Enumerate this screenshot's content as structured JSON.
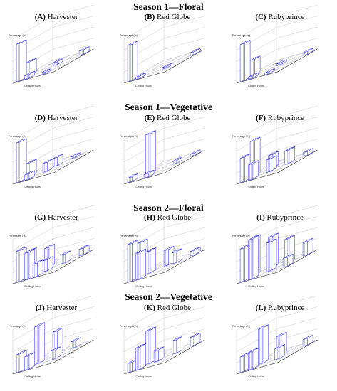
{
  "colors": {
    "bar": "#4a4af0",
    "grid": "#c8c8d8",
    "axis": "#333333"
  },
  "seasons": [
    {
      "title": "Season 1—Floral"
    },
    {
      "title": "Season 1—Vegetative"
    },
    {
      "title": "Season 2—Floral"
    },
    {
      "title": "Season 2—Vegetative"
    }
  ],
  "chart_data": [
    {
      "type": "bar",
      "title_letter": "A",
      "title_cultivar": "Harvester",
      "ylabel": "Percentage (%)",
      "xlabel": "Chilling Hours",
      "bars": [
        {
          "col": 0,
          "row": 0,
          "value": 85
        },
        {
          "col": 0,
          "row": 1,
          "value": 30
        },
        {
          "col": 1,
          "row": 0,
          "value": 8
        },
        {
          "col": 2,
          "row": 2,
          "value": 6
        },
        {
          "col": 3,
          "row": 0,
          "value": 4
        },
        {
          "col": 4,
          "row": 3,
          "value": 10
        }
      ]
    },
    {
      "type": "bar",
      "title_letter": "B",
      "title_cultivar": "Red Globe",
      "ylabel": "Percentage (%)",
      "xlabel": "Chilling Hours",
      "bars": [
        {
          "col": 0,
          "row": 0,
          "value": 82
        },
        {
          "col": 1,
          "row": 0,
          "value": 5
        },
        {
          "col": 3,
          "row": 1,
          "value": 3
        },
        {
          "col": 4,
          "row": 3,
          "value": 6
        }
      ]
    },
    {
      "type": "bar",
      "title_letter": "C",
      "title_cultivar": "Rubyprince",
      "ylabel": "Percentage (%)",
      "xlabel": "Chilling Hours",
      "bars": [
        {
          "col": 0,
          "row": 0,
          "value": 84
        },
        {
          "col": 0,
          "row": 1,
          "value": 35
        },
        {
          "col": 1,
          "row": 0,
          "value": 5
        },
        {
          "col": 2,
          "row": 2,
          "value": 4
        },
        {
          "col": 3,
          "row": 0,
          "value": 4
        },
        {
          "col": 4,
          "row": 3,
          "value": 6
        }
      ]
    },
    {
      "type": "bar",
      "title_letter": "D",
      "title_cultivar": "Harvester",
      "ylabel": "Percentage (%)",
      "xlabel": "Chilling Hours",
      "bars": [
        {
          "col": 0,
          "row": 0,
          "value": 90
        },
        {
          "col": 0,
          "row": 1,
          "value": 30
        },
        {
          "col": 1,
          "row": 0,
          "value": 12
        },
        {
          "col": 2,
          "row": 1,
          "value": 20
        },
        {
          "col": 2,
          "row": 2,
          "value": 18
        },
        {
          "col": 3,
          "row": 3,
          "value": 4
        }
      ]
    },
    {
      "type": "bar",
      "title_letter": "E",
      "title_cultivar": "Red Globe",
      "ylabel": "Percentage (%)",
      "xlabel": "Chilling Hours",
      "bars": [
        {
          "col": 0,
          "row": 0,
          "value": 10
        },
        {
          "col": 1,
          "row": 1,
          "value": 90
        },
        {
          "col": 2,
          "row": 0,
          "value": 8
        },
        {
          "col": 3,
          "row": 2,
          "value": 6
        },
        {
          "col": 4,
          "row": 3,
          "value": 5
        }
      ]
    },
    {
      "type": "bar",
      "title_letter": "F",
      "title_cultivar": "Rubyprince",
      "ylabel": "Percentage (%)",
      "xlabel": "Chilling Hours",
      "bars": [
        {
          "col": 0,
          "row": 0,
          "value": 55
        },
        {
          "col": 0,
          "row": 1,
          "value": 80
        },
        {
          "col": 1,
          "row": 0,
          "value": 35
        },
        {
          "col": 1,
          "row": 2,
          "value": 30
        },
        {
          "col": 2,
          "row": 1,
          "value": 28
        },
        {
          "col": 3,
          "row": 2,
          "value": 30
        },
        {
          "col": 4,
          "row": 3,
          "value": 8
        }
      ]
    },
    {
      "type": "bar",
      "title_letter": "G",
      "title_cultivar": "Harvester",
      "ylabel": "Percentage (%)",
      "xlabel": "Chilling Hours",
      "bars": [
        {
          "col": 0,
          "row": 0,
          "value": 70
        },
        {
          "col": 0,
          "row": 1,
          "value": 55
        },
        {
          "col": 1,
          "row": 0,
          "value": 60
        },
        {
          "col": 1,
          "row": 2,
          "value": 45
        },
        {
          "col": 2,
          "row": 0,
          "value": 30
        },
        {
          "col": 2,
          "row": 1,
          "value": 25
        },
        {
          "col": 3,
          "row": 2,
          "value": 20
        },
        {
          "col": 4,
          "row": 3,
          "value": 15
        }
      ]
    },
    {
      "type": "bar",
      "title_letter": "H",
      "title_cultivar": "Red Globe",
      "ylabel": "Percentage (%)",
      "xlabel": "Chilling Hours",
      "bars": [
        {
          "col": 0,
          "row": 0,
          "value": 85
        },
        {
          "col": 0,
          "row": 1,
          "value": 75
        },
        {
          "col": 1,
          "row": 0,
          "value": 60
        },
        {
          "col": 1,
          "row": 1,
          "value": 50
        },
        {
          "col": 2,
          "row": 2,
          "value": 35
        },
        {
          "col": 3,
          "row": 2,
          "value": 25
        },
        {
          "col": 4,
          "row": 3,
          "value": 10
        }
      ]
    },
    {
      "type": "bar",
      "title_letter": "I",
      "title_cultivar": "Rubyprince",
      "ylabel": "Percentage (%)",
      "xlabel": "Chilling Hours",
      "bars": [
        {
          "col": 0,
          "row": 0,
          "value": 75
        },
        {
          "col": 0,
          "row": 1,
          "value": 85
        },
        {
          "col": 1,
          "row": 0,
          "value": 90
        },
        {
          "col": 1,
          "row": 2,
          "value": 70
        },
        {
          "col": 2,
          "row": 1,
          "value": 65
        },
        {
          "col": 3,
          "row": 2,
          "value": 55
        },
        {
          "col": 4,
          "row": 3,
          "value": 30
        },
        {
          "col": 4,
          "row": 1,
          "value": 20
        }
      ]
    },
    {
      "type": "bar",
      "title_letter": "J",
      "title_cultivar": "Harvester",
      "ylabel": "Percentage (%)",
      "xlabel": "Chilling Hours",
      "bars": [
        {
          "col": 0,
          "row": 0,
          "value": 40
        },
        {
          "col": 1,
          "row": 1,
          "value": 85
        },
        {
          "col": 1,
          "row": 0,
          "value": 30
        },
        {
          "col": 2,
          "row": 2,
          "value": 55
        },
        {
          "col": 3,
          "row": 1,
          "value": 20
        },
        {
          "col": 3,
          "row": 3,
          "value": 15
        }
      ]
    },
    {
      "type": "bar",
      "title_letter": "K",
      "title_cultivar": "Red Globe",
      "ylabel": "Percentage (%)",
      "xlabel": "Chilling Hours",
      "bars": [
        {
          "col": 0,
          "row": 0,
          "value": 20
        },
        {
          "col": 1,
          "row": 1,
          "value": 75
        },
        {
          "col": 1,
          "row": 0,
          "value": 50
        },
        {
          "col": 2,
          "row": 1,
          "value": 25
        },
        {
          "col": 3,
          "row": 2,
          "value": 30
        },
        {
          "col": 4,
          "row": 3,
          "value": 20
        }
      ]
    },
    {
      "type": "bar",
      "title_letter": "L",
      "title_cultivar": "Rubyprince",
      "ylabel": "Percentage (%)",
      "xlabel": "Chilling Hours",
      "bars": [
        {
          "col": 0,
          "row": 0,
          "value": 35
        },
        {
          "col": 1,
          "row": 1,
          "value": 80
        },
        {
          "col": 1,
          "row": 0,
          "value": 40
        },
        {
          "col": 2,
          "row": 2,
          "value": 45
        },
        {
          "col": 3,
          "row": 1,
          "value": 25
        },
        {
          "col": 4,
          "row": 3,
          "value": 15
        }
      ]
    }
  ]
}
